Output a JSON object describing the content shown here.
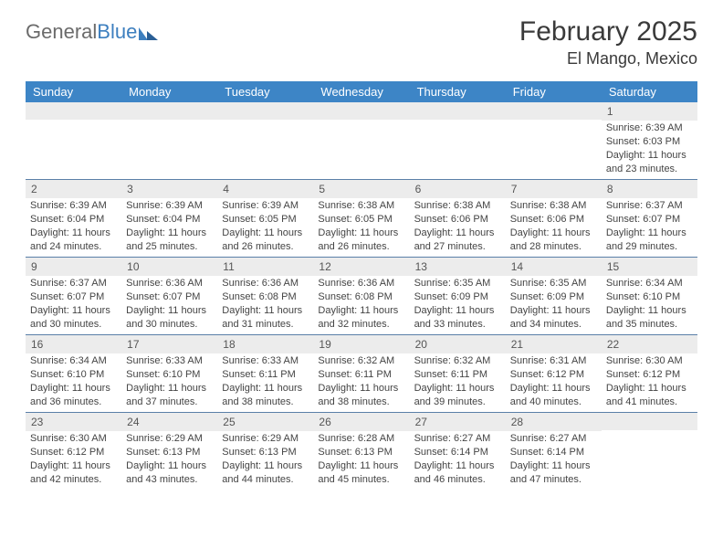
{
  "logo": {
    "word1": "General",
    "word2": "Blue"
  },
  "header": {
    "title": "February 2025",
    "subtitle": "El Mango, Mexico"
  },
  "colors": {
    "header_bg": "#3d85c6",
    "header_text": "#ffffff",
    "week_border": "#5a7fa8",
    "daynum_bg": "#ececec",
    "text": "#444444"
  },
  "dayNames": [
    "Sunday",
    "Monday",
    "Tuesday",
    "Wednesday",
    "Thursday",
    "Friday",
    "Saturday"
  ],
  "calendar": {
    "leadingBlanks": 6,
    "days": [
      {
        "n": 1,
        "sunrise": "6:39 AM",
        "sunset": "6:03 PM",
        "dl_h": 11,
        "dl_m": 23
      },
      {
        "n": 2,
        "sunrise": "6:39 AM",
        "sunset": "6:04 PM",
        "dl_h": 11,
        "dl_m": 24
      },
      {
        "n": 3,
        "sunrise": "6:39 AM",
        "sunset": "6:04 PM",
        "dl_h": 11,
        "dl_m": 25
      },
      {
        "n": 4,
        "sunrise": "6:39 AM",
        "sunset": "6:05 PM",
        "dl_h": 11,
        "dl_m": 26
      },
      {
        "n": 5,
        "sunrise": "6:38 AM",
        "sunset": "6:05 PM",
        "dl_h": 11,
        "dl_m": 26
      },
      {
        "n": 6,
        "sunrise": "6:38 AM",
        "sunset": "6:06 PM",
        "dl_h": 11,
        "dl_m": 27
      },
      {
        "n": 7,
        "sunrise": "6:38 AM",
        "sunset": "6:06 PM",
        "dl_h": 11,
        "dl_m": 28
      },
      {
        "n": 8,
        "sunrise": "6:37 AM",
        "sunset": "6:07 PM",
        "dl_h": 11,
        "dl_m": 29
      },
      {
        "n": 9,
        "sunrise": "6:37 AM",
        "sunset": "6:07 PM",
        "dl_h": 11,
        "dl_m": 30
      },
      {
        "n": 10,
        "sunrise": "6:36 AM",
        "sunset": "6:07 PM",
        "dl_h": 11,
        "dl_m": 30
      },
      {
        "n": 11,
        "sunrise": "6:36 AM",
        "sunset": "6:08 PM",
        "dl_h": 11,
        "dl_m": 31
      },
      {
        "n": 12,
        "sunrise": "6:36 AM",
        "sunset": "6:08 PM",
        "dl_h": 11,
        "dl_m": 32
      },
      {
        "n": 13,
        "sunrise": "6:35 AM",
        "sunset": "6:09 PM",
        "dl_h": 11,
        "dl_m": 33
      },
      {
        "n": 14,
        "sunrise": "6:35 AM",
        "sunset": "6:09 PM",
        "dl_h": 11,
        "dl_m": 34
      },
      {
        "n": 15,
        "sunrise": "6:34 AM",
        "sunset": "6:10 PM",
        "dl_h": 11,
        "dl_m": 35
      },
      {
        "n": 16,
        "sunrise": "6:34 AM",
        "sunset": "6:10 PM",
        "dl_h": 11,
        "dl_m": 36
      },
      {
        "n": 17,
        "sunrise": "6:33 AM",
        "sunset": "6:10 PM",
        "dl_h": 11,
        "dl_m": 37
      },
      {
        "n": 18,
        "sunrise": "6:33 AM",
        "sunset": "6:11 PM",
        "dl_h": 11,
        "dl_m": 38
      },
      {
        "n": 19,
        "sunrise": "6:32 AM",
        "sunset": "6:11 PM",
        "dl_h": 11,
        "dl_m": 38
      },
      {
        "n": 20,
        "sunrise": "6:32 AM",
        "sunset": "6:11 PM",
        "dl_h": 11,
        "dl_m": 39
      },
      {
        "n": 21,
        "sunrise": "6:31 AM",
        "sunset": "6:12 PM",
        "dl_h": 11,
        "dl_m": 40
      },
      {
        "n": 22,
        "sunrise": "6:30 AM",
        "sunset": "6:12 PM",
        "dl_h": 11,
        "dl_m": 41
      },
      {
        "n": 23,
        "sunrise": "6:30 AM",
        "sunset": "6:12 PM",
        "dl_h": 11,
        "dl_m": 42
      },
      {
        "n": 24,
        "sunrise": "6:29 AM",
        "sunset": "6:13 PM",
        "dl_h": 11,
        "dl_m": 43
      },
      {
        "n": 25,
        "sunrise": "6:29 AM",
        "sunset": "6:13 PM",
        "dl_h": 11,
        "dl_m": 44
      },
      {
        "n": 26,
        "sunrise": "6:28 AM",
        "sunset": "6:13 PM",
        "dl_h": 11,
        "dl_m": 45
      },
      {
        "n": 27,
        "sunrise": "6:27 AM",
        "sunset": "6:14 PM",
        "dl_h": 11,
        "dl_m": 46
      },
      {
        "n": 28,
        "sunrise": "6:27 AM",
        "sunset": "6:14 PM",
        "dl_h": 11,
        "dl_m": 47
      }
    ],
    "labels": {
      "sunrise": "Sunrise:",
      "sunset": "Sunset:",
      "daylight_prefix": "Daylight:",
      "hours_word": "hours",
      "and_word": "and",
      "minutes_word": "minutes."
    }
  }
}
